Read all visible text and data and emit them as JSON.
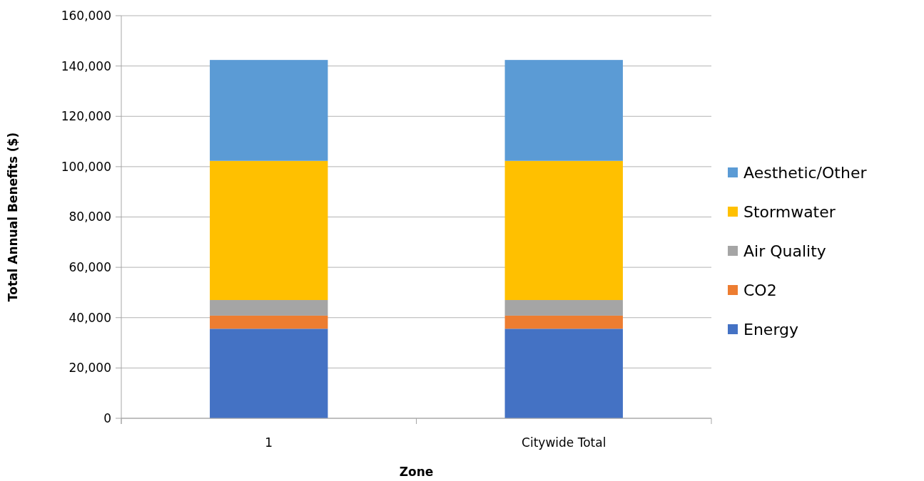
{
  "chart_data": {
    "type": "bar",
    "stacked": true,
    "categories": [
      "1",
      "Citywide Total"
    ],
    "xlabel": "Zone",
    "ylabel": "Total Annual Benefits ($)",
    "ylim": [
      0,
      160000
    ],
    "yticks": [
      {
        "value": 0,
        "label": "0"
      },
      {
        "value": 20000,
        "label": "20,000"
      },
      {
        "value": 40000,
        "label": "40,000"
      },
      {
        "value": 60000,
        "label": "60,000"
      },
      {
        "value": 80000,
        "label": "80,000"
      },
      {
        "value": 100000,
        "label": "100,000"
      },
      {
        "value": 120000,
        "label": "120,000"
      },
      {
        "value": 140000,
        "label": "140,000"
      },
      {
        "value": 160000,
        "label": "160,000"
      }
    ],
    "grid": "y",
    "legend": "right",
    "series": [
      {
        "name": "Energy",
        "color": "#4472c4",
        "values": [
          35600,
          35600
        ]
      },
      {
        "name": "CO2",
        "color": "#ed7d31",
        "values": [
          5200,
          5200
        ]
      },
      {
        "name": "Air Quality",
        "color": "#a5a5a5",
        "values": [
          6200,
          6200
        ]
      },
      {
        "name": "Stormwater",
        "color": "#ffc000",
        "values": [
          55300,
          55300
        ]
      },
      {
        "name": "Aesthetic/Other",
        "color": "#5b9bd5",
        "values": [
          40100,
          40100
        ]
      }
    ]
  }
}
